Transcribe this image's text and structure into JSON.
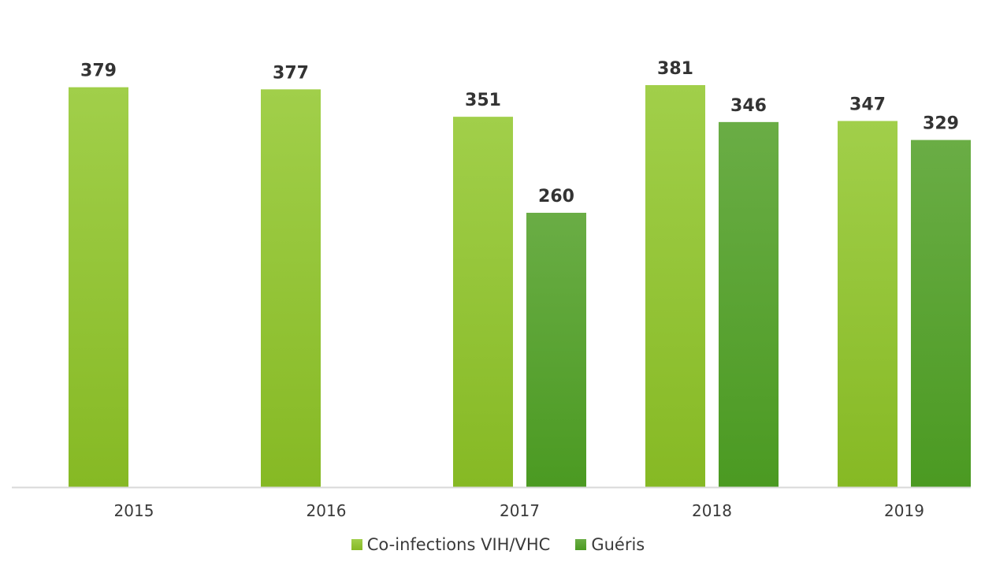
{
  "chart_data": {
    "type": "bar",
    "categories": [
      "2015",
      "2016",
      "2017",
      "2018",
      "2019"
    ],
    "series": [
      {
        "name": "Co-infections VIH/VHC",
        "values": [
          379,
          377,
          351,
          381,
          347
        ],
        "color_top": "#a1cf4a",
        "color_bottom": "#86b924"
      },
      {
        "name": "Guéris",
        "values": [
          null,
          null,
          260,
          346,
          329
        ],
        "color_top": "#6aad45",
        "color_bottom": "#4b9a22"
      }
    ],
    "ylim": [
      0,
      381
    ],
    "grid": false,
    "legend_position": "bottom",
    "axis_line_color": "#d9d9d9"
  }
}
